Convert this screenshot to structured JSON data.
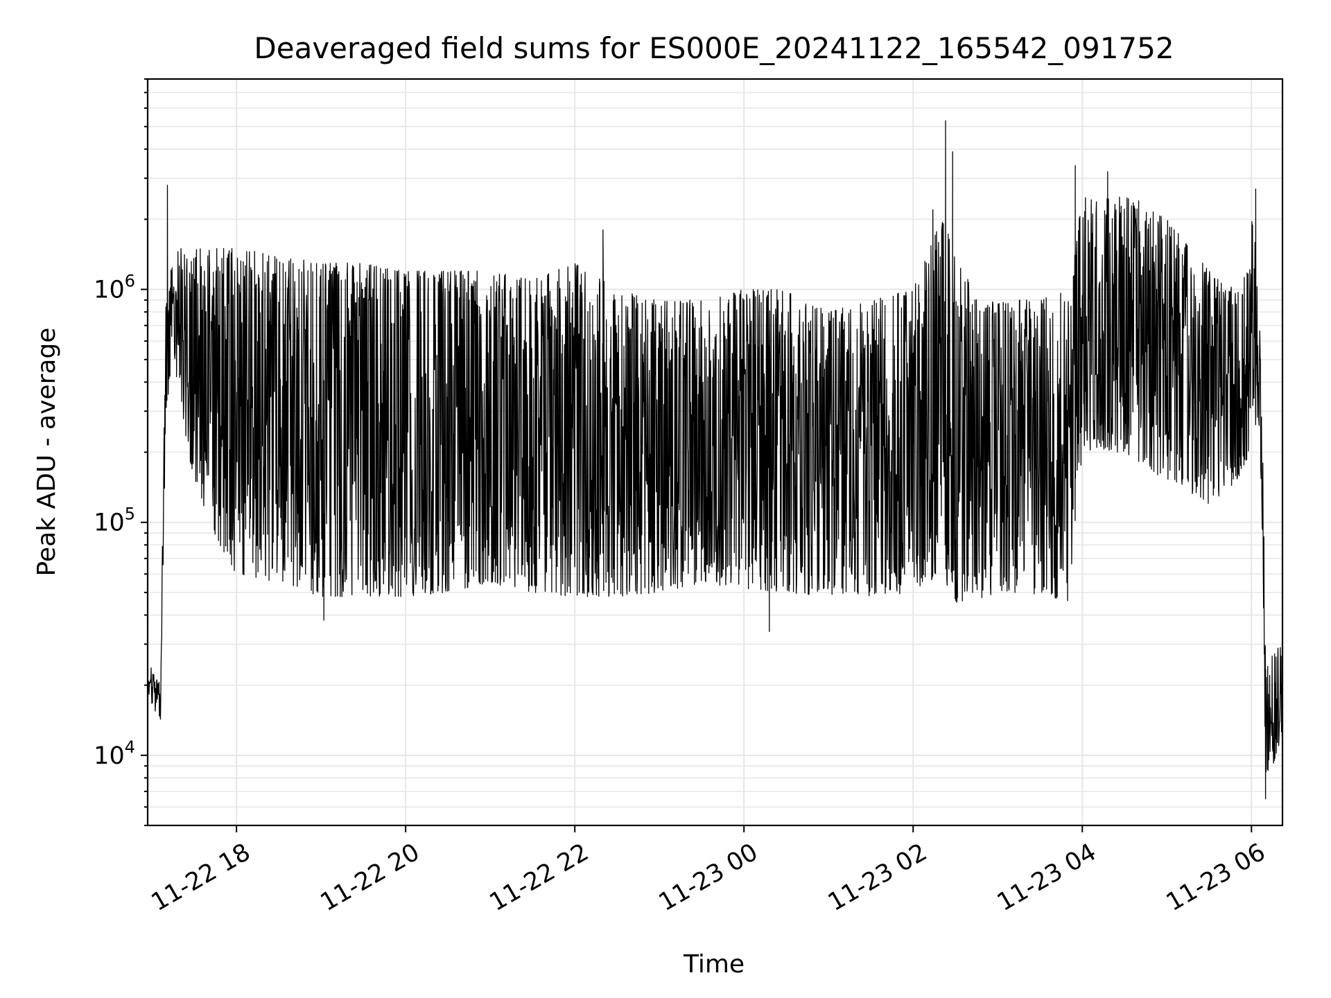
{
  "chart_data": {
    "type": "line",
    "title": "Deaveraged field sums for ES000E_20241122_165542_091752",
    "xlabel": "Time",
    "ylabel": "Peak ADU - average",
    "yscale": "log",
    "ylim": [
      5000,
      8000000
    ],
    "xlim": [
      "2024-11-22 16:57",
      "2024-11-23 06:22"
    ],
    "grid": true,
    "line_color": "#000000",
    "grid_color": "#e6e6e6",
    "x_ticks": [
      {
        "value": "2024-11-22 18:00",
        "label": "11-22 18"
      },
      {
        "value": "2024-11-22 20:00",
        "label": "11-22 20"
      },
      {
        "value": "2024-11-22 22:00",
        "label": "11-22 22"
      },
      {
        "value": "2024-11-23 00:00",
        "label": "11-23 00"
      },
      {
        "value": "2024-11-23 02:00",
        "label": "11-23 02"
      },
      {
        "value": "2024-11-23 04:00",
        "label": "11-23 04"
      },
      {
        "value": "2024-11-23 06:00",
        "label": "11-23 06"
      }
    ],
    "y_ticks": [
      {
        "value": 10000,
        "base": "10",
        "exp": "4"
      },
      {
        "value": 100000,
        "base": "10",
        "exp": "5"
      },
      {
        "value": 1000000,
        "base": "10",
        "exp": "6"
      }
    ],
    "envelope": {
      "note_x_unit": "time",
      "x": [
        "2024-11-22 16:57",
        "2024-11-22 17:03",
        "2024-11-22 17:06",
        "2024-11-22 17:10",
        "2024-11-22 17:15",
        "2024-11-22 17:20",
        "2024-11-22 17:30",
        "2024-11-22 17:45",
        "2024-11-22 18:00",
        "2024-11-22 18:30",
        "2024-11-22 19:00",
        "2024-11-22 19:30",
        "2024-11-22 20:00",
        "2024-11-22 20:30",
        "2024-11-22 21:00",
        "2024-11-22 21:30",
        "2024-11-22 22:00",
        "2024-11-22 22:30",
        "2024-11-22 23:00",
        "2024-11-22 23:30",
        "2024-11-23 00:00",
        "2024-11-23 00:30",
        "2024-11-23 01:00",
        "2024-11-23 01:30",
        "2024-11-23 02:00",
        "2024-11-23 02:20",
        "2024-11-23 02:30",
        "2024-11-23 02:45",
        "2024-11-23 03:00",
        "2024-11-23 03:30",
        "2024-11-23 03:50",
        "2024-11-23 04:00",
        "2024-11-23 04:30",
        "2024-11-23 05:00",
        "2024-11-23 05:30",
        "2024-11-23 05:50",
        "2024-11-23 06:00",
        "2024-11-23 06:05",
        "2024-11-23 06:08",
        "2024-11-23 06:10",
        "2024-11-23 06:15",
        "2024-11-23 06:22"
      ],
      "low": [
        18000,
        15000,
        14000,
        300000,
        500000,
        300000,
        150000,
        80000,
        60000,
        55000,
        48000,
        48000,
        48000,
        50000,
        55000,
        50000,
        48000,
        48000,
        50000,
        55000,
        52000,
        50000,
        48000,
        48000,
        50000,
        60000,
        45000,
        45000,
        50000,
        48000,
        45000,
        200000,
        200000,
        150000,
        120000,
        150000,
        200000,
        300000,
        80000,
        8000,
        9000,
        12000
      ],
      "high": [
        25000,
        22000,
        20000,
        900000,
        1400000,
        1500000,
        1500000,
        1500000,
        1500000,
        1400000,
        1300000,
        1300000,
        1200000,
        1200000,
        1200000,
        1100000,
        1300000,
        1000000,
        900000,
        900000,
        1000000,
        1000000,
        800000,
        900000,
        1000000,
        2000000,
        1500000,
        900000,
        900000,
        900000,
        1000000,
        2500000,
        2500000,
        2000000,
        1200000,
        1000000,
        2000000,
        1500000,
        200000,
        30000,
        28000,
        30000
      ],
      "peaks": [
        {
          "x": "2024-11-22 17:11",
          "y": 2800000
        },
        {
          "x": "2024-11-22 22:20",
          "y": 1800000
        },
        {
          "x": "2024-11-23 02:14",
          "y": 2200000
        },
        {
          "x": "2024-11-23 02:23",
          "y": 5300000
        },
        {
          "x": "2024-11-23 02:28",
          "y": 3900000
        },
        {
          "x": "2024-11-23 03:55",
          "y": 3400000
        },
        {
          "x": "2024-11-23 04:18",
          "y": 3200000
        },
        {
          "x": "2024-11-23 04:40",
          "y": 2400000
        },
        {
          "x": "2024-11-23 06:03",
          "y": 2700000
        }
      ],
      "dips": [
        {
          "x": "2024-11-23 00:18",
          "y": 34000
        },
        {
          "x": "2024-11-22 19:02",
          "y": 38000
        },
        {
          "x": "2024-11-23 06:10",
          "y": 6500
        }
      ]
    }
  }
}
